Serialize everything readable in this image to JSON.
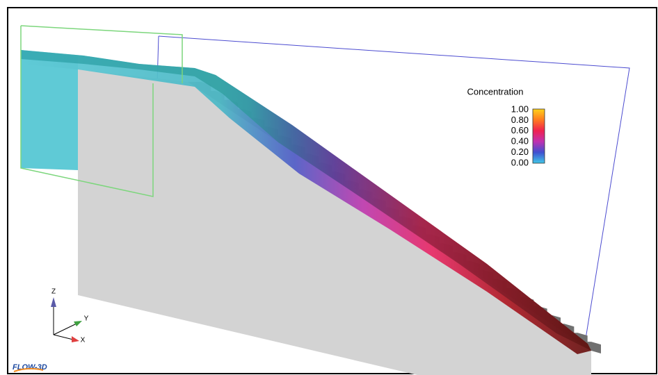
{
  "legend": {
    "title": "Concentration",
    "labels": [
      "1.00",
      "0.80",
      "0.60",
      "0.40",
      "0.20",
      "0.00"
    ]
  },
  "triad": {
    "z": "Z",
    "y": "Y",
    "x": "X"
  },
  "logo": "FLOW-3D"
}
